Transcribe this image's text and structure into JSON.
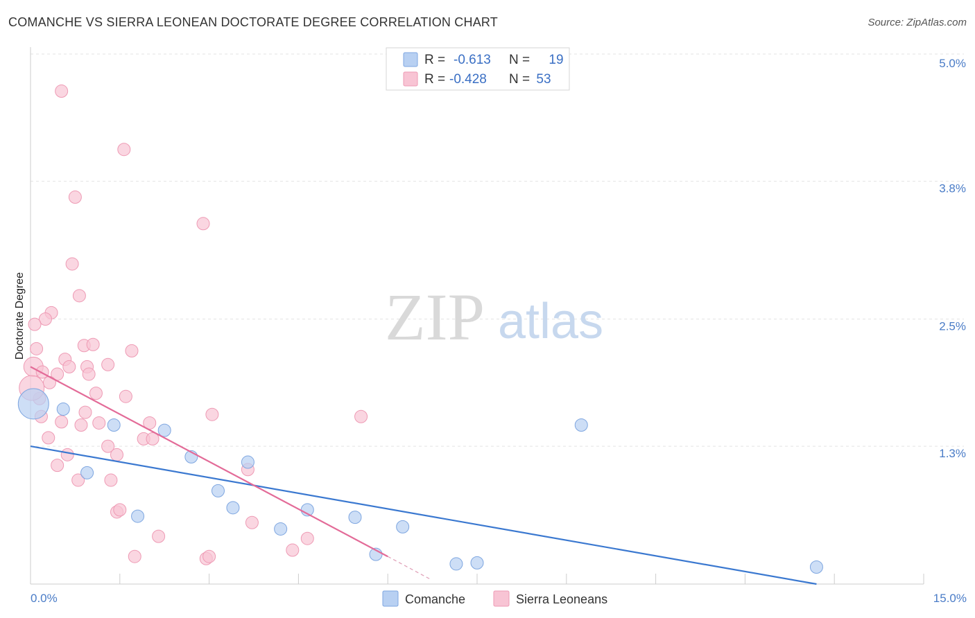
{
  "header": {
    "title": "COMANCHE VS SIERRA LEONEAN DOCTORATE DEGREE CORRELATION CHART",
    "source": "Source: ZipAtlas.com"
  },
  "watermark": {
    "zip": "ZIP",
    "atlas": "atlas"
  },
  "colors": {
    "comanche_fill": "#b8d0f2",
    "comanche_stroke": "#7ea6e0",
    "comanche_line": "#3a78d0",
    "sierra_fill": "#f8c4d4",
    "sierra_stroke": "#ee9ab4",
    "sierra_line": "#e36b98",
    "tick_text": "#4a7cc7",
    "grid": "#e3e3e3"
  },
  "stats_legend": {
    "r_label": "R =",
    "n_label": "N =",
    "rows": [
      {
        "series": "Comanche",
        "r": "-0.613",
        "n": "19"
      },
      {
        "series": "Sierra Leoneans",
        "r": "-0.428",
        "n": "53"
      }
    ]
  },
  "chart_data": {
    "type": "scatter",
    "title": "COMANCHE VS SIERRA LEONEAN DOCTORATE DEGREE CORRELATION CHART",
    "xlabel": "",
    "ylabel": "Doctorate Degree",
    "xlim": [
      0,
      15
    ],
    "ylim": [
      0,
      5.0
    ],
    "x_tick_labels": [
      {
        "value": 0,
        "label": "0.0%"
      },
      {
        "value": 15,
        "label": "15.0%"
      }
    ],
    "y_ticks": [
      {
        "value": 1.3,
        "label": "1.3%"
      },
      {
        "value": 2.5,
        "label": "2.5%"
      },
      {
        "value": 3.8,
        "label": "3.8%"
      },
      {
        "value": 5.0,
        "label": "5.0%"
      }
    ],
    "x_minor_ticks": [
      1.5,
      3.0,
      4.5,
      6.0,
      7.5,
      9.0,
      10.5,
      12.0,
      13.5,
      15.0
    ],
    "grid": true,
    "legend_position": "bottom-center",
    "series": [
      {
        "name": "Comanche",
        "points": [
          [
            0.05,
            1.7,
            22
          ],
          [
            0.55,
            1.65,
            9
          ],
          [
            1.4,
            1.5,
            9
          ],
          [
            2.25,
            1.45,
            9
          ],
          [
            0.95,
            1.05,
            9
          ],
          [
            2.7,
            1.2,
            9
          ],
          [
            3.65,
            1.15,
            9
          ],
          [
            3.15,
            0.88,
            9
          ],
          [
            3.4,
            0.72,
            9
          ],
          [
            4.65,
            0.7,
            9
          ],
          [
            1.8,
            0.64,
            9
          ],
          [
            5.45,
            0.63,
            9
          ],
          [
            4.2,
            0.52,
            9
          ],
          [
            6.25,
            0.54,
            9
          ],
          [
            9.25,
            1.5,
            9
          ],
          [
            5.8,
            0.28,
            9
          ],
          [
            7.15,
            0.19,
            9
          ],
          [
            7.5,
            0.2,
            9
          ],
          [
            13.2,
            0.16,
            9
          ]
        ],
        "trendline": {
          "x": [
            0,
            13.2
          ],
          "y": [
            1.3,
            0.0
          ]
        }
      },
      {
        "name": "Sierra Leoneans",
        "points": [
          [
            0.52,
            4.65,
            9
          ],
          [
            1.57,
            4.1,
            9
          ],
          [
            0.75,
            3.65,
            9
          ],
          [
            2.9,
            3.4,
            9
          ],
          [
            0.7,
            3.02,
            9
          ],
          [
            0.82,
            2.72,
            9
          ],
          [
            0.35,
            2.56,
            9
          ],
          [
            0.25,
            2.5,
            9
          ],
          [
            0.1,
            2.22,
            9
          ],
          [
            0.05,
            2.05,
            14
          ],
          [
            0.2,
            2.0,
            9
          ],
          [
            0.58,
            2.12,
            9
          ],
          [
            0.65,
            2.05,
            9
          ],
          [
            0.9,
            2.25,
            9
          ],
          [
            1.05,
            2.26,
            9
          ],
          [
            0.95,
            2.05,
            9
          ],
          [
            0.98,
            1.98,
            9
          ],
          [
            1.3,
            2.07,
            9
          ],
          [
            1.7,
            2.2,
            9
          ],
          [
            0.45,
            1.98,
            9
          ],
          [
            0.32,
            1.9,
            9
          ],
          [
            0.15,
            1.75,
            9
          ],
          [
            0.02,
            1.85,
            18
          ],
          [
            1.1,
            1.8,
            9
          ],
          [
            1.6,
            1.77,
            9
          ],
          [
            0.92,
            1.62,
            9
          ],
          [
            3.05,
            1.6,
            9
          ],
          [
            0.18,
            1.58,
            9
          ],
          [
            0.52,
            1.53,
            9
          ],
          [
            0.85,
            1.5,
            9
          ],
          [
            1.15,
            1.52,
            9
          ],
          [
            2.0,
            1.52,
            9
          ],
          [
            0.3,
            1.38,
            9
          ],
          [
            1.9,
            1.37,
            9
          ],
          [
            2.05,
            1.37,
            9
          ],
          [
            1.3,
            1.3,
            9
          ],
          [
            1.45,
            1.22,
            9
          ],
          [
            0.62,
            1.22,
            9
          ],
          [
            5.55,
            1.58,
            9
          ],
          [
            0.45,
            1.12,
            9
          ],
          [
            3.65,
            1.08,
            9
          ],
          [
            0.8,
            0.98,
            9
          ],
          [
            1.35,
            0.98,
            9
          ],
          [
            1.45,
            0.68,
            9
          ],
          [
            1.5,
            0.7,
            9
          ],
          [
            3.72,
            0.58,
            9
          ],
          [
            2.15,
            0.45,
            9
          ],
          [
            4.65,
            0.43,
            9
          ],
          [
            4.4,
            0.32,
            9
          ],
          [
            1.75,
            0.26,
            9
          ],
          [
            2.95,
            0.24,
            9
          ],
          [
            3.0,
            0.26,
            9
          ],
          [
            0.07,
            2.45,
            9
          ]
        ],
        "trendline": {
          "x": [
            0,
            6.0
          ],
          "y": [
            2.05,
            0.26
          ]
        },
        "trendline_dashed_extension": {
          "x": [
            6.0,
            6.7
          ],
          "y": [
            0.26,
            0.05
          ]
        }
      }
    ]
  }
}
